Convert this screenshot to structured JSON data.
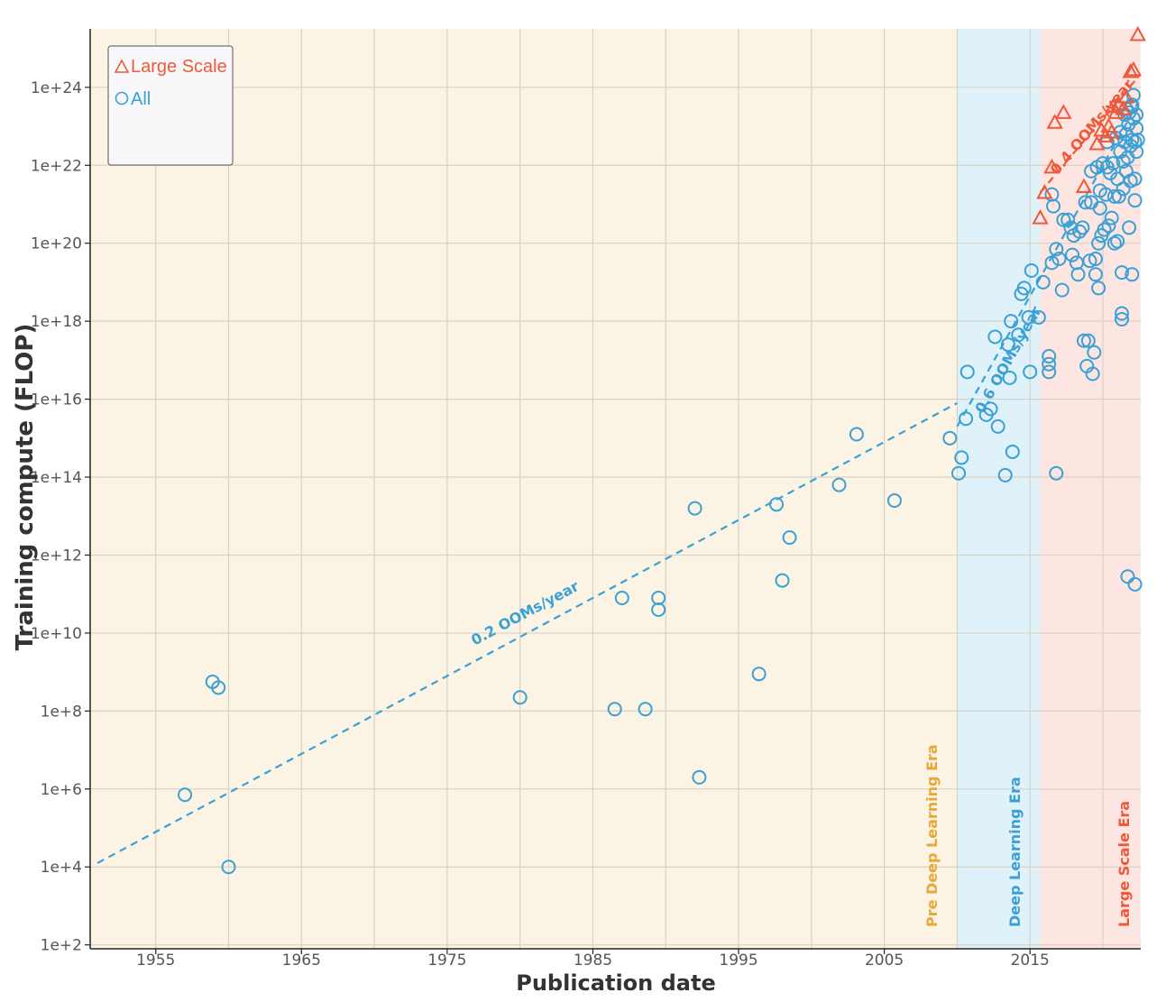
{
  "chart_data": {
    "type": "scatter",
    "xlabel": "Publication date",
    "ylabel": "Training compute (FLOP)",
    "xlim": [
      1950.5,
      2022.6
    ],
    "ylim_log10": [
      1.9,
      25.5
    ],
    "x_ticks": [
      1955,
      1965,
      1975,
      1985,
      1995,
      2005,
      2015
    ],
    "y_ticks": [
      {
        "exp": 2,
        "label": "1e+2"
      },
      {
        "exp": 4,
        "label": "1e+4"
      },
      {
        "exp": 6,
        "label": "1e+6"
      },
      {
        "exp": 8,
        "label": "1e+8"
      },
      {
        "exp": 10,
        "label": "1e+10"
      },
      {
        "exp": 12,
        "label": "1e+12"
      },
      {
        "exp": 14,
        "label": "1e+14"
      },
      {
        "exp": 16,
        "label": "1e+16"
      },
      {
        "exp": 18,
        "label": "1e+18"
      },
      {
        "exp": 20,
        "label": "1e+20"
      },
      {
        "exp": 22,
        "label": "1e+22"
      },
      {
        "exp": 24,
        "label": "1e+24"
      }
    ],
    "eras": [
      {
        "name": "Pre Deep Learning Era",
        "start": 1950.5,
        "end": 2010,
        "fill": "#fbf3e4",
        "color": "#e8a838"
      },
      {
        "name": "Deep Learning Era",
        "start": 2010,
        "end": 2015.7,
        "fill": "#dff1f9",
        "color": "#3aa0d5"
      },
      {
        "name": "Large Scale Era",
        "start": 2015.7,
        "end": 2022.6,
        "fill": "#fde6e2",
        "color": "#f0583a"
      }
    ],
    "legend": [
      {
        "name": "Large Scale",
        "marker": "triangle",
        "color": "#f0583a"
      },
      {
        "name": "All",
        "marker": "circle",
        "color": "#3aa0d5"
      }
    ],
    "trends": [
      {
        "label": "0.2 OOMs/year",
        "color": "#3aa0d5",
        "x": [
          1951,
          2010
        ],
        "y": [
          4.1,
          15.9
        ],
        "label_at": [
          1980.5,
          10.4
        ]
      },
      {
        "label": "0.6 OOMs/year",
        "color": "#3aa0d5",
        "x": [
          2010,
          2022.4
        ],
        "y": [
          15.3,
          23.6
        ],
        "label_at": [
          2013.8,
          16.95
        ]
      },
      {
        "label": "0.4 OOMs/year",
        "color": "#f0583a",
        "x": [
          2015.7,
          2022.5
        ],
        "y": [
          21.3,
          24.3
        ],
        "label_at": [
          2019.5,
          22.9
        ]
      }
    ],
    "series": [
      {
        "name": "All",
        "marker": "circle",
        "color": "#3aa0d5",
        "points": [
          [
            1957.0,
            5.85
          ],
          [
            1958.9,
            8.75
          ],
          [
            1959.3,
            8.6
          ],
          [
            1960.0,
            4.0
          ],
          [
            1980.0,
            8.35
          ],
          [
            1986.5,
            8.05
          ],
          [
            1988.6,
            8.05
          ],
          [
            1987.0,
            10.9
          ],
          [
            1989.5,
            10.9
          ],
          [
            1989.5,
            10.6
          ],
          [
            1992.0,
            13.2
          ],
          [
            1992.3,
            6.3
          ],
          [
            1996.4,
            8.95
          ],
          [
            1997.6,
            13.3
          ],
          [
            1998.0,
            11.35
          ],
          [
            1998.5,
            12.45
          ],
          [
            2001.9,
            13.8
          ],
          [
            2003.1,
            15.1
          ],
          [
            2005.7,
            13.4
          ],
          [
            2009.5,
            15.0
          ],
          [
            2010.1,
            14.1
          ],
          [
            2010.3,
            14.5
          ],
          [
            2010.6,
            15.5
          ],
          [
            2010.7,
            16.7
          ],
          [
            2012.0,
            15.6
          ],
          [
            2012.3,
            15.75
          ],
          [
            2012.6,
            17.6
          ],
          [
            2012.8,
            15.3
          ],
          [
            2013.3,
            14.05
          ],
          [
            2013.5,
            17.4
          ],
          [
            2013.6,
            16.55
          ],
          [
            2013.7,
            18.0
          ],
          [
            2013.8,
            14.65
          ],
          [
            2014.2,
            17.65
          ],
          [
            2014.4,
            18.7
          ],
          [
            2014.6,
            18.85
          ],
          [
            2014.9,
            18.1
          ],
          [
            2015.0,
            16.7
          ],
          [
            2015.1,
            19.3
          ],
          [
            2015.6,
            18.1
          ],
          [
            2015.9,
            19.0
          ],
          [
            2016.3,
            16.7
          ],
          [
            2016.3,
            16.9
          ],
          [
            2016.3,
            17.1
          ],
          [
            2016.5,
            19.5
          ],
          [
            2016.5,
            21.25
          ],
          [
            2016.6,
            20.95
          ],
          [
            2016.8,
            19.85
          ],
          [
            2016.8,
            14.1
          ],
          [
            2017.0,
            19.6
          ],
          [
            2017.2,
            18.8
          ],
          [
            2017.3,
            20.6
          ],
          [
            2017.6,
            20.6
          ],
          [
            2017.8,
            20.4
          ],
          [
            2017.9,
            19.7
          ],
          [
            2018.0,
            20.2
          ],
          [
            2018.2,
            19.5
          ],
          [
            2018.3,
            19.2
          ],
          [
            2018.4,
            20.3
          ],
          [
            2018.6,
            20.4
          ],
          [
            2018.7,
            17.5
          ],
          [
            2018.8,
            21.05
          ],
          [
            2018.9,
            16.85
          ],
          [
            2019.0,
            17.5
          ],
          [
            2019.1,
            19.55
          ],
          [
            2019.2,
            21.85
          ],
          [
            2019.2,
            21.05
          ],
          [
            2019.3,
            16.65
          ],
          [
            2019.4,
            17.2
          ],
          [
            2019.5,
            19.2
          ],
          [
            2019.5,
            19.6
          ],
          [
            2019.6,
            21.95
          ],
          [
            2019.7,
            18.85
          ],
          [
            2019.7,
            20.0
          ],
          [
            2019.8,
            20.9
          ],
          [
            2019.8,
            21.35
          ],
          [
            2019.9,
            20.2
          ],
          [
            2020.0,
            22.05
          ],
          [
            2020.1,
            20.35
          ],
          [
            2020.2,
            21.25
          ],
          [
            2020.3,
            21.95
          ],
          [
            2020.3,
            22.6
          ],
          [
            2020.4,
            20.45
          ],
          [
            2020.5,
            21.8
          ],
          [
            2020.6,
            20.65
          ],
          [
            2020.7,
            22.05
          ],
          [
            2020.8,
            20.0
          ],
          [
            2020.8,
            21.2
          ],
          [
            2020.9,
            22.7
          ],
          [
            2021.0,
            20.05
          ],
          [
            2021.0,
            21.65
          ],
          [
            2021.1,
            21.2
          ],
          [
            2021.2,
            22.35
          ],
          [
            2021.2,
            22.85
          ],
          [
            2021.3,
            18.05
          ],
          [
            2021.3,
            18.2
          ],
          [
            2021.3,
            19.25
          ],
          [
            2021.4,
            21.4
          ],
          [
            2021.5,
            22.6
          ],
          [
            2021.5,
            23.3
          ],
          [
            2021.6,
            22.8
          ],
          [
            2021.6,
            21.85
          ],
          [
            2021.7,
            11.45
          ],
          [
            2021.8,
            20.4
          ],
          [
            2021.8,
            23.35
          ],
          [
            2021.9,
            21.6
          ],
          [
            2021.9,
            22.5
          ],
          [
            2022.0,
            19.2
          ],
          [
            2022.0,
            23.5
          ],
          [
            2022.0,
            22.65
          ],
          [
            2022.1,
            23.8
          ],
          [
            2022.1,
            23.2
          ],
          [
            2022.2,
            11.25
          ],
          [
            2022.2,
            21.1
          ],
          [
            2022.2,
            21.65
          ],
          [
            2022.3,
            22.35
          ],
          [
            2022.3,
            23.3
          ],
          [
            2022.3,
            22.95
          ],
          [
            2022.4,
            22.65
          ],
          [
            2021.75,
            23.05
          ],
          [
            2022.0,
            23.55
          ],
          [
            2021.7,
            22.2
          ],
          [
            2021.4,
            22.1
          ],
          [
            2021.6,
            23.45
          ],
          [
            2022.2,
            22.6
          ]
        ]
      },
      {
        "name": "Large Scale",
        "marker": "triangle",
        "color": "#f0583a",
        "points": [
          [
            2015.7,
            20.65
          ],
          [
            2016.0,
            21.3
          ],
          [
            2016.5,
            21.95
          ],
          [
            2016.7,
            23.1
          ],
          [
            2017.3,
            23.35
          ],
          [
            2018.7,
            21.45
          ],
          [
            2019.6,
            22.55
          ],
          [
            2019.9,
            22.9
          ],
          [
            2020.2,
            22.75
          ],
          [
            2020.4,
            23.0
          ],
          [
            2020.6,
            22.85
          ],
          [
            2020.7,
            23.5
          ],
          [
            2020.9,
            23.35
          ],
          [
            2021.1,
            23.55
          ],
          [
            2021.4,
            23.45
          ],
          [
            2021.6,
            23.75
          ],
          [
            2021.9,
            24.4
          ],
          [
            2022.1,
            24.45
          ],
          [
            2022.4,
            25.35
          ]
        ]
      }
    ]
  }
}
